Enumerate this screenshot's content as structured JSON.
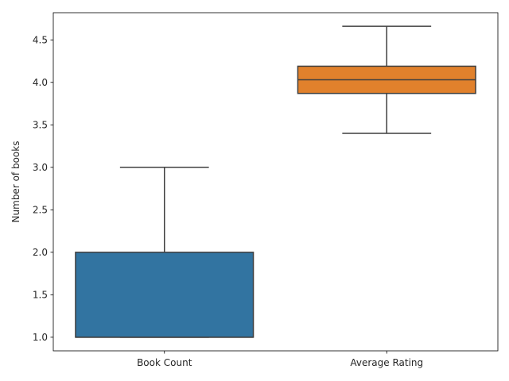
{
  "chart_data": {
    "type": "box",
    "categories": [
      "Book Count",
      "Average Rating"
    ],
    "xlabel": "",
    "ylabel": "Number of books",
    "ylim": [
      0.84,
      4.82
    ],
    "yticks": [
      "1.0",
      "1.5",
      "2.0",
      "2.5",
      "3.0",
      "3.5",
      "4.0",
      "4.5"
    ],
    "grid": false,
    "boxes": [
      {
        "name": "Book Count",
        "color": "#3274a1",
        "whisker_low": 1.0,
        "q1": 1.0,
        "median": 1.0,
        "q3": 2.0,
        "whisker_high": 3.0
      },
      {
        "name": "Average Rating",
        "color": "#e1812c",
        "whisker_low": 3.4,
        "q1": 3.87,
        "median": 4.03,
        "q3": 4.19,
        "whisker_high": 4.66
      }
    ],
    "colors": {
      "line": "#3f3f3f",
      "axis": "#000000",
      "text": "#262626"
    }
  }
}
